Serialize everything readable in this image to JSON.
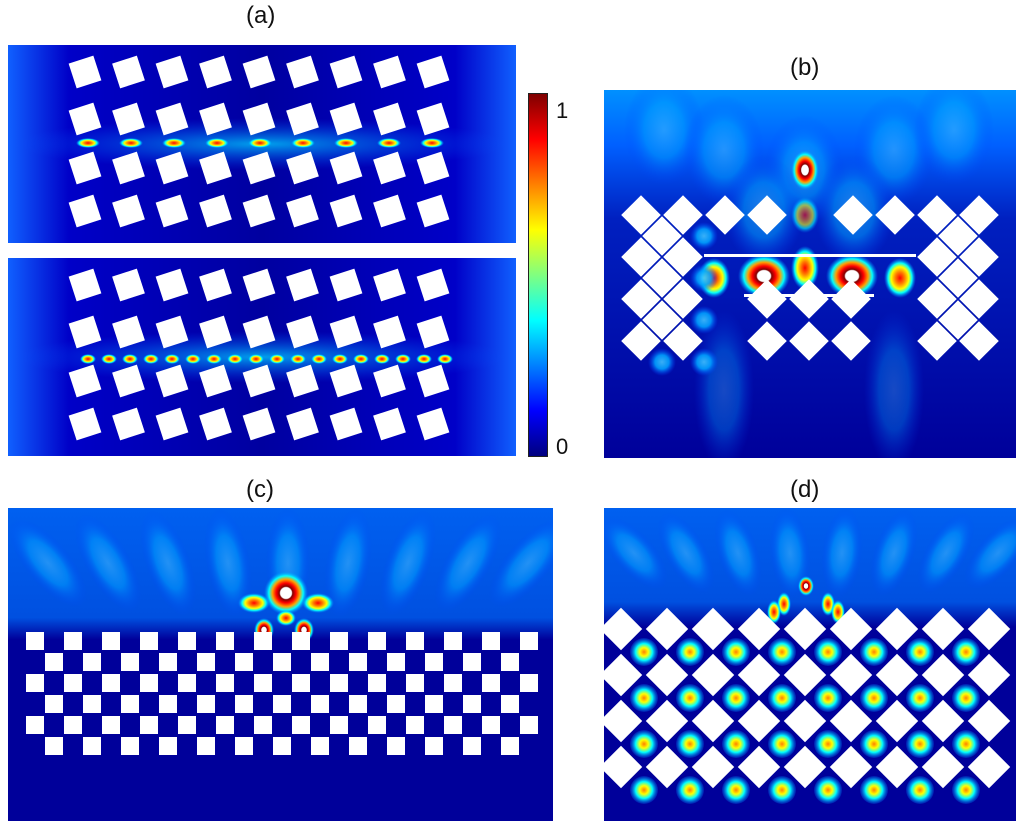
{
  "panels": {
    "a": {
      "label": "(a)"
    },
    "b": {
      "label": "(b)"
    },
    "c": {
      "label": "(c)"
    },
    "d": {
      "label": "(d)"
    }
  },
  "colorbar": {
    "max_label": "1",
    "min_label": "0",
    "colors": [
      "#00007f",
      "#0000ff",
      "#0080ff",
      "#00ffff",
      "#80ff80",
      "#ffff00",
      "#ff8000",
      "#ff0000",
      "#7f0000"
    ]
  },
  "colors": {
    "field_background": "#00008b",
    "hole_fill": "#ffffff"
  }
}
